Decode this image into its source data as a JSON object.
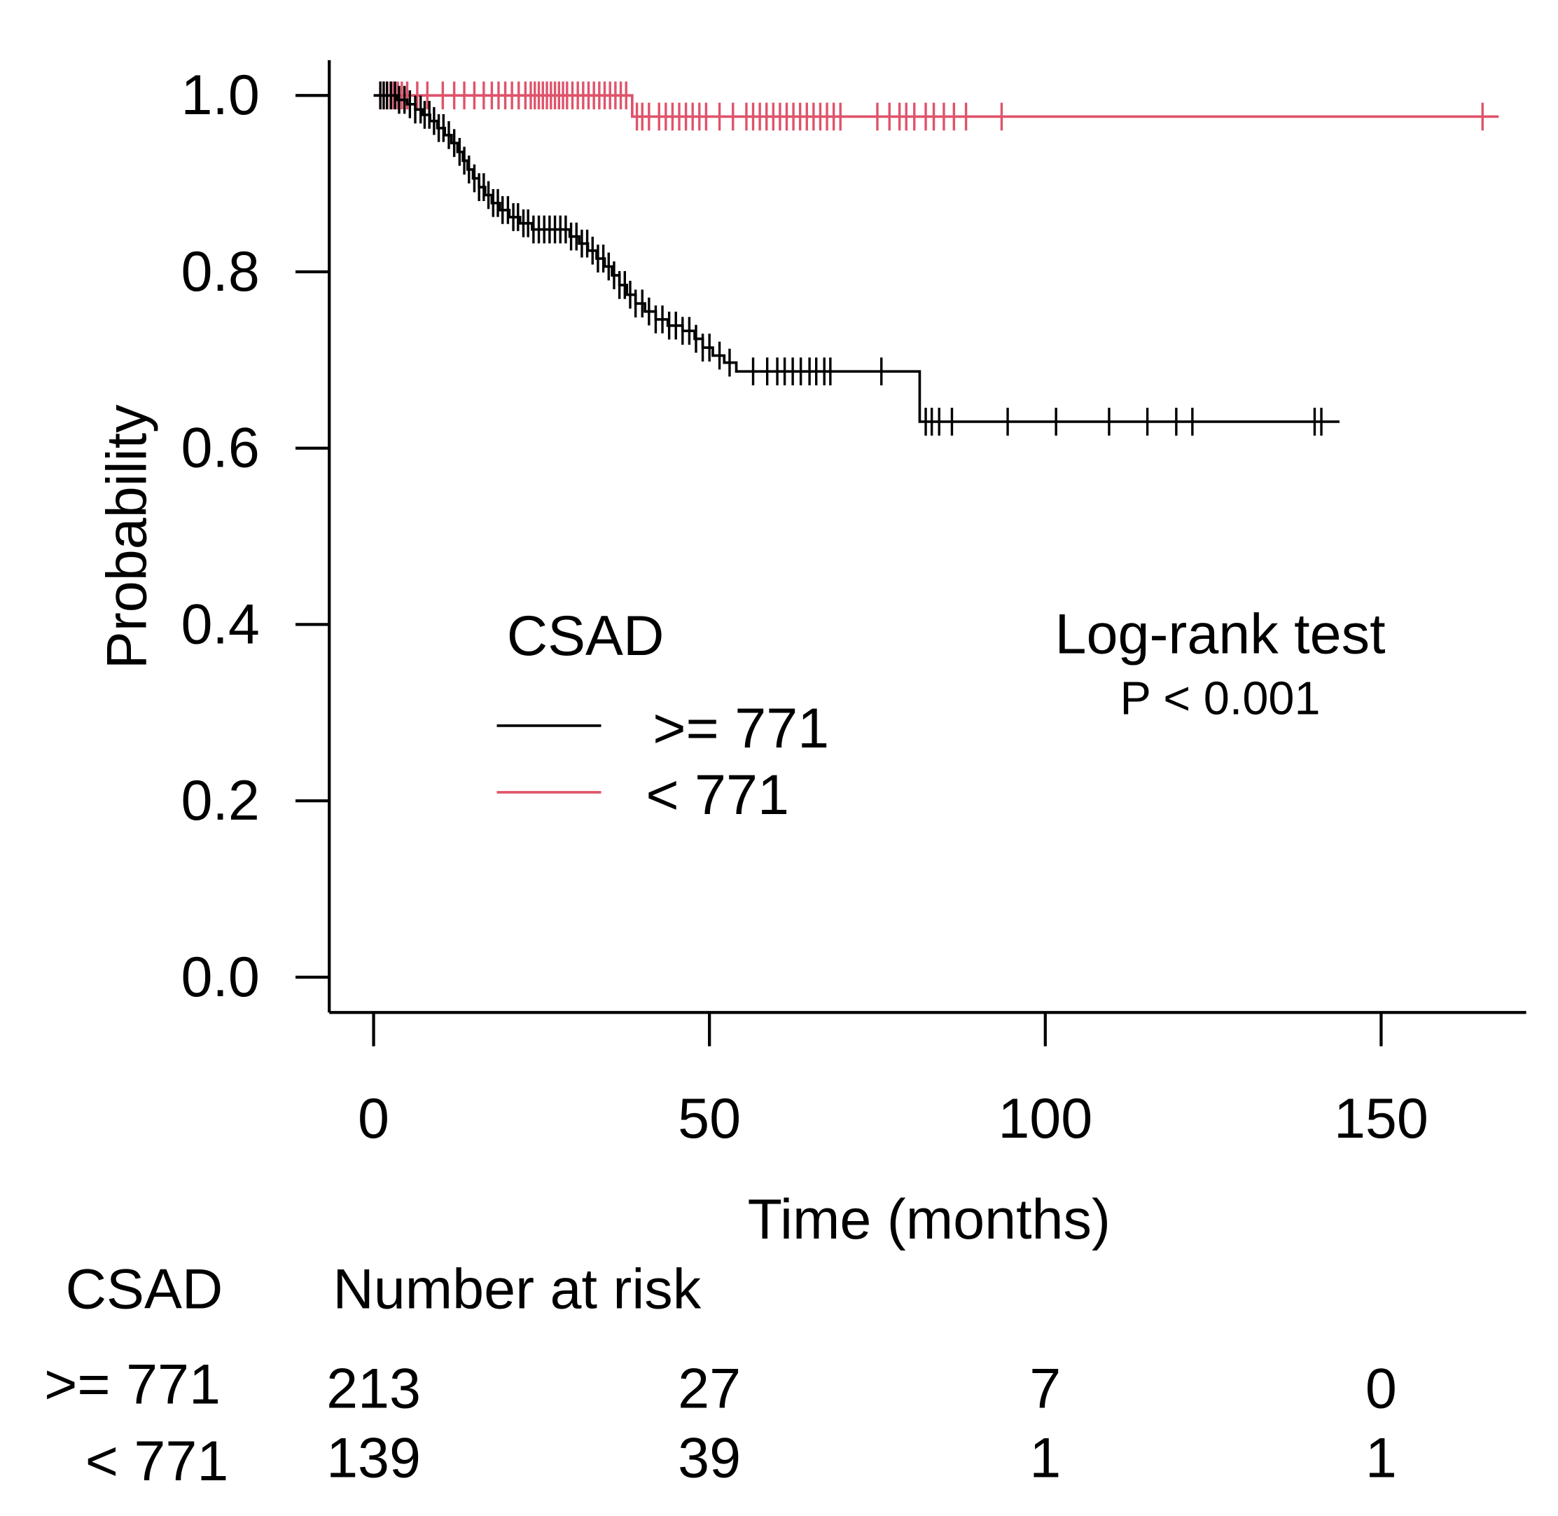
{
  "chart_data": {
    "type": "line",
    "title": "",
    "xlabel": "Time (months)",
    "ylabel": "Probability",
    "xlim": [
      0,
      165
    ],
    "ylim": [
      0,
      1.0
    ],
    "grid": false,
    "x_ticks": [
      0,
      50,
      100,
      150
    ],
    "y_ticks": [
      0,
      0.2,
      0.4,
      0.6,
      0.8,
      1.0
    ],
    "y_tick_labels": [
      "0.0",
      "0.2",
      "0.4",
      "0.6",
      "0.8",
      "1.0"
    ],
    "legend": {
      "title": "CSAD",
      "position": "center"
    },
    "annotation": {
      "title": "Log-rank test",
      "text": "P < 0.001"
    },
    "series": [
      {
        "name": ">= 771",
        "color": "#000000",
        "steps": [
          [
            0,
            1.0
          ],
          [
            3.5,
            0.995
          ],
          [
            5.0,
            0.99
          ],
          [
            6.2,
            0.984
          ],
          [
            7.3,
            0.978
          ],
          [
            8.4,
            0.971
          ],
          [
            9.5,
            0.963
          ],
          [
            10.6,
            0.955
          ],
          [
            11.6,
            0.946
          ],
          [
            12.5,
            0.936
          ],
          [
            13.3,
            0.926
          ],
          [
            14.0,
            0.916
          ],
          [
            14.8,
            0.906
          ],
          [
            15.7,
            0.896
          ],
          [
            16.6,
            0.887
          ],
          [
            17.6,
            0.878
          ],
          [
            18.8,
            0.87
          ],
          [
            20.2,
            0.862
          ],
          [
            21.8,
            0.855
          ],
          [
            23.6,
            0.848
          ],
          [
            29.2,
            0.84
          ],
          [
            30.6,
            0.832
          ],
          [
            31.9,
            0.824
          ],
          [
            33.2,
            0.815
          ],
          [
            34.4,
            0.806
          ],
          [
            35.5,
            0.796
          ],
          [
            36.6,
            0.785
          ],
          [
            37.7,
            0.774
          ],
          [
            39.0,
            0.764
          ],
          [
            40.4,
            0.755
          ],
          [
            42.0,
            0.746
          ],
          [
            43.8,
            0.739
          ],
          [
            46.0,
            0.733
          ],
          [
            47.8,
            0.724
          ],
          [
            49.0,
            0.714
          ],
          [
            50.5,
            0.705
          ],
          [
            52.2,
            0.697
          ],
          [
            54.0,
            0.687
          ],
          [
            81.3,
            0.63
          ]
        ],
        "end_time": 143.8,
        "censored": [
          1.0,
          1.5,
          2.0,
          2.6,
          3.2,
          3.8,
          4.6,
          5.4,
          6.2,
          7.0,
          7.6,
          8.3,
          9.0,
          9.7,
          10.4,
          11.2,
          12.0,
          12.8,
          13.5,
          14.2,
          15.0,
          15.7,
          16.4,
          17.1,
          17.8,
          18.5,
          19.2,
          20.0,
          20.8,
          21.5,
          22.3,
          23.0,
          23.8,
          24.6,
          25.4,
          26.2,
          27.0,
          27.8,
          28.6,
          29.4,
          30.2,
          31.0,
          31.8,
          32.6,
          33.4,
          34.2,
          35.0,
          35.8,
          36.6,
          37.4,
          38.2,
          39.0,
          40.0,
          41.0,
          42.0,
          43.0,
          44.0,
          45.0,
          46.0,
          47.0,
          48.0,
          49.0,
          50.0,
          51.5,
          53.0,
          56.5,
          58.6,
          60.1,
          61.2,
          62.4,
          63.6,
          64.9,
          65.9,
          67.1,
          68.0,
          75.6,
          82.2,
          83.1,
          84.2,
          86.1,
          94.4,
          101.6,
          109.5,
          115.2,
          119.5,
          121.9,
          140.1,
          141.1
        ]
      },
      {
        "name": "< 771",
        "color": "#DF536B",
        "steps": [
          [
            0,
            1.0
          ],
          [
            38.5,
            0.976
          ]
        ],
        "end_time": 167.5,
        "censored": [
          1.0,
          1.5,
          2.0,
          2.5,
          3.0,
          3.6,
          4.2,
          5.0,
          6.5,
          8.0,
          10.3,
          12.0,
          13.5,
          15.0,
          16.4,
          17.6,
          18.6,
          19.6,
          20.6,
          21.6,
          22.6,
          23.4,
          24.0,
          24.6,
          25.2,
          25.8,
          26.4,
          27.0,
          27.6,
          28.2,
          28.8,
          29.6,
          30.4,
          31.2,
          32.0,
          32.8,
          33.6,
          34.4,
          35.2,
          36.0,
          36.8,
          37.6,
          39.2,
          40.0,
          41.0,
          42.5,
          43.5,
          44.5,
          45.5,
          46.5,
          47.5,
          48.5,
          49.5,
          51.5,
          53.5,
          55.5,
          56.5,
          57.5,
          58.5,
          59.5,
          60.5,
          61.5,
          62.5,
          63.5,
          64.5,
          65.5,
          66.5,
          67.5,
          68.5,
          69.5,
          75.0,
          76.8,
          78.3,
          79.3,
          80.5,
          82.2,
          83.4,
          84.9,
          86.4,
          88.2,
          93.5,
          165.1
        ]
      }
    ],
    "risk_table": {
      "group_header": "CSAD",
      "title": "Number at risk",
      "times": [
        0,
        50,
        100,
        150
      ],
      "rows": [
        {
          "label": ">= 771",
          "counts": [
            213,
            27,
            7,
            0
          ]
        },
        {
          "label": "< 771",
          "counts": [
            139,
            39,
            1,
            1
          ]
        }
      ]
    }
  }
}
